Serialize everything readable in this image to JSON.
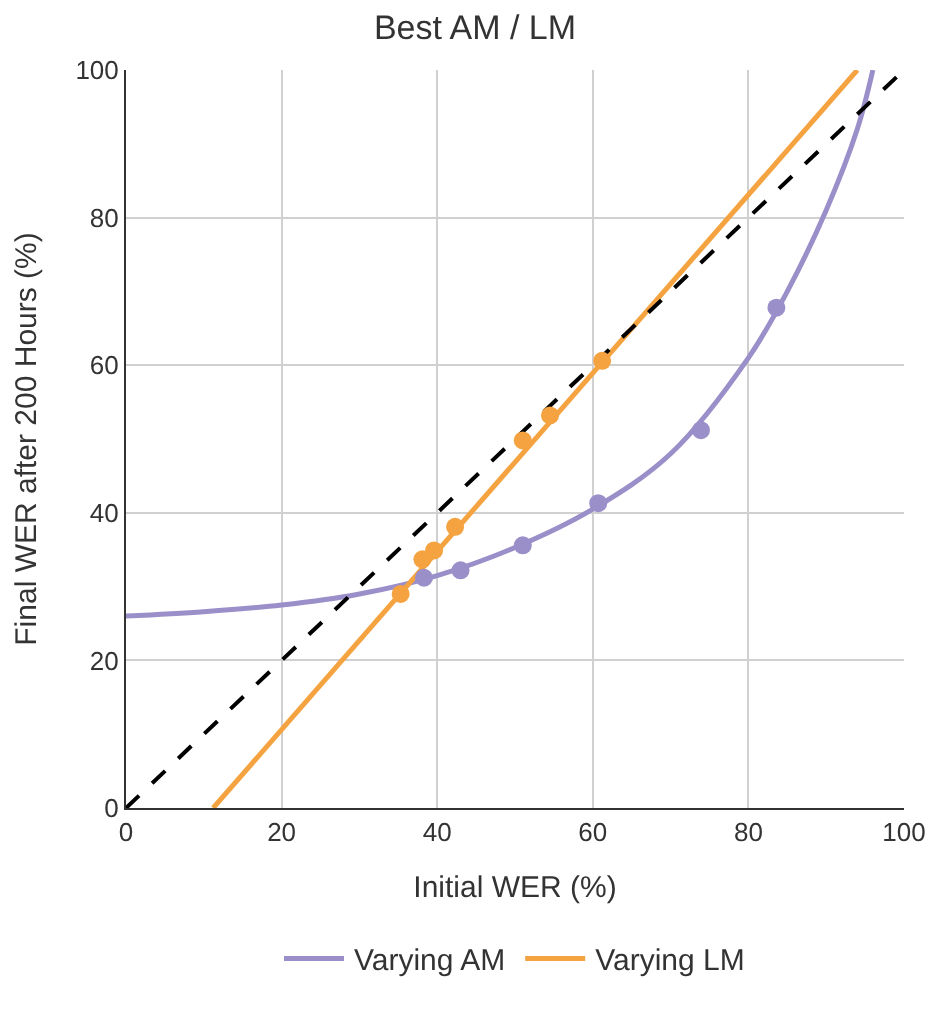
{
  "chart_data": {
    "type": "line",
    "title": "Best AM / LM",
    "xlabel": "Initial WER (%)",
    "ylabel": "Final WER after 200 Hours (%)",
    "xlim": [
      0,
      100
    ],
    "ylim": [
      0,
      100
    ],
    "xticks": [
      0,
      20,
      40,
      60,
      80,
      100
    ],
    "yticks": [
      0,
      20,
      40,
      60,
      80,
      100
    ],
    "grid": true,
    "legend": "bottom",
    "series": [
      {
        "name": "Varying AM",
        "color": "#9a8fc9",
        "line_style": "solid",
        "marker": "none",
        "x": [
          0,
          10,
          20,
          30,
          40,
          50,
          60,
          70,
          80,
          85,
          90,
          94,
          96
        ],
        "values": [
          26,
          26.6,
          27.5,
          29,
          31.5,
          35.3,
          40.5,
          48,
          61,
          70,
          81,
          92,
          100
        ]
      },
      {
        "name": "Varying LM",
        "color": "#f4a340",
        "line_style": "solid",
        "marker": "none",
        "x": [
          11.2,
          94
        ],
        "values": [
          0,
          100
        ]
      },
      {
        "color": "#000000",
        "line_style": "dashed",
        "marker": "none",
        "x": [
          0,
          100
        ],
        "values": [
          0,
          100
        ]
      },
      {
        "color": "#9a8fc9",
        "type": "scatter",
        "marker": "circle",
        "x": [
          38.3,
          43.0,
          51.0,
          60.7,
          73.9,
          83.6
        ],
        "values": [
          31.2,
          32.2,
          35.6,
          41.3,
          51.2,
          67.8
        ]
      },
      {
        "color": "#f4a340",
        "type": "scatter",
        "marker": "circle",
        "x": [
          35.3,
          38.1,
          39.6,
          42.3,
          51.0,
          54.5,
          61.2
        ],
        "values": [
          29.0,
          33.7,
          34.9,
          38.1,
          49.8,
          53.2,
          60.6
        ]
      }
    ]
  }
}
